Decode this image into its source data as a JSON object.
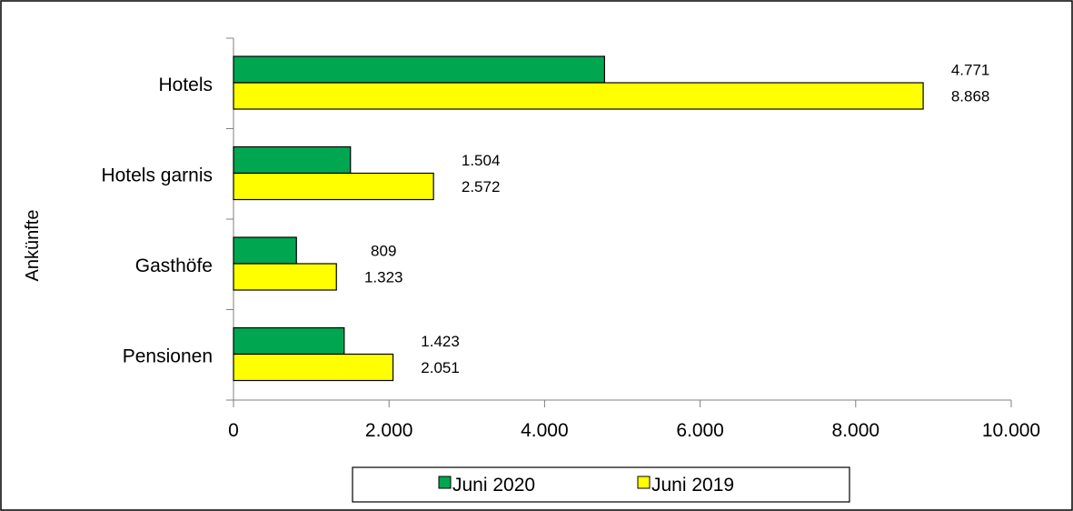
{
  "chart_data": {
    "type": "bar",
    "orientation": "horizontal",
    "title": "",
    "ylabel": "Ankünfte",
    "xlabel": "",
    "categories": [
      "Hotels",
      "Hotels garnis",
      "Gasthöfe",
      "Pensionen"
    ],
    "series": [
      {
        "name": "Juni 2020",
        "color": "#00a650",
        "values": [
          4771,
          1504,
          809,
          1423
        ],
        "labels": [
          "4.771",
          "1.504",
          "809",
          "1.423"
        ]
      },
      {
        "name": "Juni 2019",
        "color": "#ffff00",
        "values": [
          8868,
          2572,
          1323,
          2051
        ],
        "labels": [
          "8.868",
          "2.572",
          "1.323",
          "2.051"
        ]
      }
    ],
    "xlim": [
      0,
      10000
    ],
    "xticks": [
      0,
      2000,
      4000,
      6000,
      8000,
      10000
    ],
    "xtick_labels": [
      "0",
      "2.000",
      "4.000",
      "6.000",
      "8.000",
      "10.000"
    ],
    "grid": false,
    "legend_position": "bottom"
  }
}
